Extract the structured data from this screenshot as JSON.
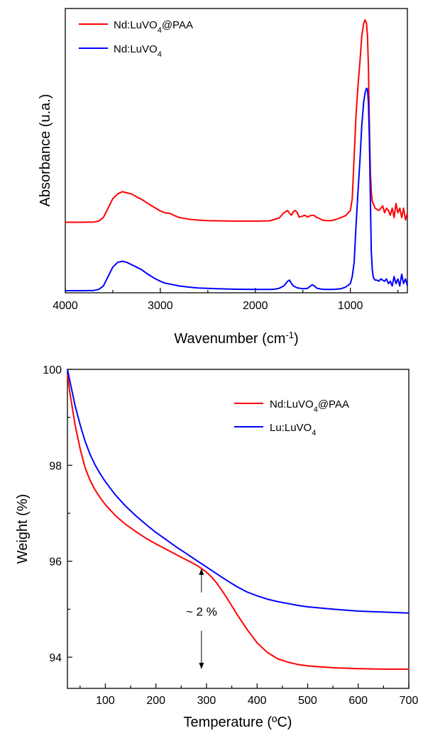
{
  "chart_data": [
    {
      "type": "line",
      "xlabel": "Wavenumber (cm⁻¹)",
      "ylabel": "Absorbance (u.a.)",
      "xlim": [
        4000,
        400
      ],
      "x_ticks": [
        4000,
        3000,
        2000,
        1000
      ],
      "ylim": [
        0,
        1
      ],
      "y_ticks": [],
      "grid": false,
      "legend_position": "top-left",
      "series": [
        {
          "name": "Nd:LuVO₄@PAA",
          "color": "#ff0000",
          "x": [
            4000,
            3800,
            3700,
            3650,
            3600,
            3550,
            3500,
            3450,
            3400,
            3350,
            3300,
            3250,
            3200,
            3150,
            3100,
            3050,
            3000,
            2950,
            2900,
            2850,
            2800,
            2700,
            2600,
            2500,
            2400,
            2200,
            2000,
            1850,
            1800,
            1750,
            1700,
            1660,
            1640,
            1620,
            1600,
            1580,
            1560,
            1540,
            1510,
            1480,
            1450,
            1420,
            1400,
            1380,
            1350,
            1320,
            1300,
            1250,
            1200,
            1150,
            1100,
            1050,
            1000,
            980,
            960,
            940,
            920,
            900,
            880,
            860,
            845,
            830,
            820,
            810,
            800,
            790,
            780,
            770,
            760,
            750,
            740,
            720,
            700,
            680,
            660,
            640,
            620,
            600,
            580,
            560,
            540,
            520,
            500,
            480,
            460,
            440,
            420,
            400
          ],
          "y": [
            0.14,
            0.14,
            0.141,
            0.145,
            0.16,
            0.2,
            0.24,
            0.26,
            0.27,
            0.265,
            0.26,
            0.248,
            0.238,
            0.225,
            0.212,
            0.2,
            0.188,
            0.18,
            0.178,
            0.168,
            0.16,
            0.153,
            0.149,
            0.147,
            0.146,
            0.145,
            0.145,
            0.146,
            0.152,
            0.158,
            0.18,
            0.19,
            0.178,
            0.17,
            0.185,
            0.19,
            0.182,
            0.162,
            0.165,
            0.17,
            0.162,
            0.168,
            0.17,
            0.168,
            0.16,
            0.155,
            0.15,
            0.147,
            0.147,
            0.152,
            0.16,
            0.168,
            0.19,
            0.24,
            0.42,
            0.6,
            0.72,
            0.82,
            0.93,
            0.985,
            1.0,
            0.985,
            0.93,
            0.8,
            0.56,
            0.36,
            0.27,
            0.23,
            0.22,
            0.21,
            0.2,
            0.195,
            0.19,
            0.2,
            0.21,
            0.18,
            0.2,
            0.19,
            0.17,
            0.2,
            0.16,
            0.22,
            0.18,
            0.2,
            0.16,
            0.2,
            0.15,
            0.18
          ]
        },
        {
          "name": "Nd:LuVO₄",
          "color": "#0000ff",
          "x": [
            4000,
            3800,
            3700,
            3650,
            3600,
            3550,
            3500,
            3450,
            3400,
            3350,
            3300,
            3250,
            3200,
            3150,
            3100,
            3050,
            3000,
            2950,
            2900,
            2800,
            2700,
            2600,
            2400,
            2200,
            2000,
            1850,
            1800,
            1750,
            1700,
            1660,
            1640,
            1620,
            1600,
            1560,
            1500,
            1450,
            1420,
            1400,
            1380,
            1350,
            1300,
            1250,
            1200,
            1150,
            1100,
            1050,
            1000,
            980,
            960,
            940,
            920,
            900,
            880,
            860,
            845,
            830,
            820,
            810,
            800,
            790,
            780,
            770,
            760,
            750,
            740,
            720,
            700,
            680,
            660,
            640,
            620,
            600,
            580,
            560,
            540,
            520,
            500,
            480,
            460,
            440,
            420,
            400
          ],
          "y": [
            0.0,
            0.0,
            0.001,
            0.005,
            0.02,
            0.06,
            0.1,
            0.12,
            0.125,
            0.12,
            0.11,
            0.1,
            0.09,
            0.075,
            0.062,
            0.05,
            0.04,
            0.032,
            0.028,
            0.02,
            0.015,
            0.011,
            0.008,
            0.006,
            0.005,
            0.005,
            0.006,
            0.01,
            0.02,
            0.04,
            0.045,
            0.03,
            0.02,
            0.012,
            0.008,
            0.01,
            0.02,
            0.025,
            0.02,
            0.01,
            0.006,
            0.005,
            0.005,
            0.006,
            0.008,
            0.015,
            0.03,
            0.06,
            0.12,
            0.28,
            0.42,
            0.55,
            0.7,
            0.8,
            0.84,
            0.86,
            0.855,
            0.8,
            0.65,
            0.4,
            0.17,
            0.09,
            0.06,
            0.05,
            0.045,
            0.045,
            0.04,
            0.05,
            0.045,
            0.04,
            0.05,
            0.03,
            0.04,
            0.02,
            0.06,
            0.03,
            0.05,
            0.02,
            0.07,
            0.03,
            0.05,
            0.02
          ]
        }
      ]
    },
    {
      "type": "line",
      "xlabel": "Temperature (ºC)",
      "ylabel": "Weight (%)",
      "xlim": [
        25,
        700
      ],
      "x_ticks": [
        100,
        200,
        300,
        400,
        500,
        600,
        700
      ],
      "ylim": [
        93.5,
        100
      ],
      "y_ticks": [
        94,
        96,
        98,
        100
      ],
      "grid": false,
      "legend_position": "top-right",
      "annotation": "~ 2 %",
      "annotation_range": {
        "x": 290,
        "y_top": 95.85,
        "y_bottom": 93.75
      },
      "series": [
        {
          "name": "Nd:LuVO₄@PAA",
          "color": "#ff0000",
          "x": [
            25,
            30,
            40,
            50,
            60,
            70,
            80,
            90,
            100,
            120,
            140,
            160,
            180,
            200,
            220,
            240,
            260,
            280,
            290,
            300,
            310,
            320,
            330,
            340,
            350,
            360,
            370,
            380,
            390,
            400,
            420,
            440,
            460,
            480,
            500,
            550,
            600,
            650,
            700
          ],
          "y": [
            99.9,
            99.5,
            98.85,
            98.35,
            97.95,
            97.68,
            97.48,
            97.32,
            97.18,
            96.95,
            96.77,
            96.62,
            96.48,
            96.36,
            96.25,
            96.14,
            96.03,
            95.92,
            95.85,
            95.77,
            95.67,
            95.55,
            95.4,
            95.24,
            95.07,
            94.9,
            94.74,
            94.58,
            94.44,
            94.3,
            94.1,
            93.97,
            93.9,
            93.85,
            93.82,
            93.78,
            93.76,
            93.75,
            93.75
          ]
        },
        {
          "name": "Lu:LuVO₄",
          "color": "#0000ff",
          "x": [
            25,
            30,
            40,
            50,
            60,
            70,
            80,
            90,
            100,
            120,
            140,
            160,
            180,
            200,
            220,
            240,
            260,
            280,
            300,
            320,
            340,
            360,
            380,
            400,
            420,
            440,
            460,
            480,
            500,
            550,
            600,
            650,
            700
          ],
          "y": [
            100.0,
            99.75,
            99.25,
            98.85,
            98.5,
            98.22,
            98.0,
            97.82,
            97.66,
            97.38,
            97.15,
            96.95,
            96.77,
            96.6,
            96.45,
            96.3,
            96.16,
            96.02,
            95.88,
            95.74,
            95.6,
            95.47,
            95.36,
            95.28,
            95.21,
            95.16,
            95.12,
            95.08,
            95.05,
            95.0,
            94.96,
            94.94,
            94.92
          ]
        }
      ]
    }
  ]
}
